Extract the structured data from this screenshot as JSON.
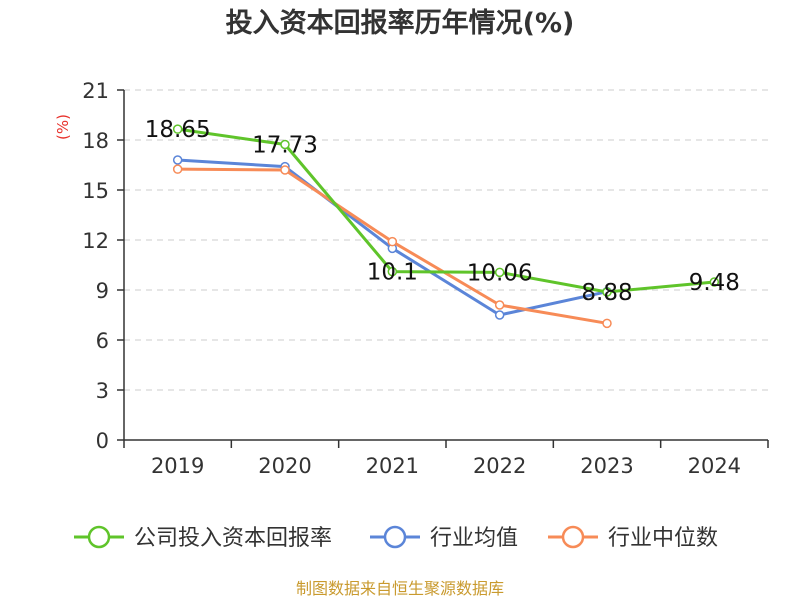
{
  "chart_data": {
    "type": "line",
    "title": "投入资本回报率历年情况(%)",
    "ylabel": "(%)",
    "xlabel": "",
    "categories": [
      "2019",
      "2020",
      "2021",
      "2022",
      "2023",
      "2024"
    ],
    "ylim": [
      0,
      21
    ],
    "yticks": [
      0,
      3,
      6,
      9,
      12,
      15,
      18,
      21
    ],
    "grid": true,
    "legend_position": "bottom",
    "series": [
      {
        "name": "公司投入资本回报率",
        "color": "#5fc42a",
        "values": [
          18.65,
          17.73,
          10.1,
          10.06,
          8.88,
          9.48
        ],
        "labels": [
          "18.65",
          "17.73",
          "10.1",
          "10.06",
          "8.88",
          "9.48"
        ]
      },
      {
        "name": "行业均值",
        "color": "#5b85d8",
        "values": [
          16.8,
          16.4,
          11.5,
          7.5,
          8.9,
          null
        ]
      },
      {
        "name": "行业中位数",
        "color": "#f78b57",
        "values": [
          16.25,
          16.2,
          11.9,
          8.1,
          7.0,
          null
        ]
      }
    ],
    "source": "制图数据来自恒生聚源数据库",
    "colors": {
      "axis": "#333333",
      "grid": "#cccccc",
      "ylabel": "#e8312b",
      "source": "#c99a2e"
    }
  }
}
